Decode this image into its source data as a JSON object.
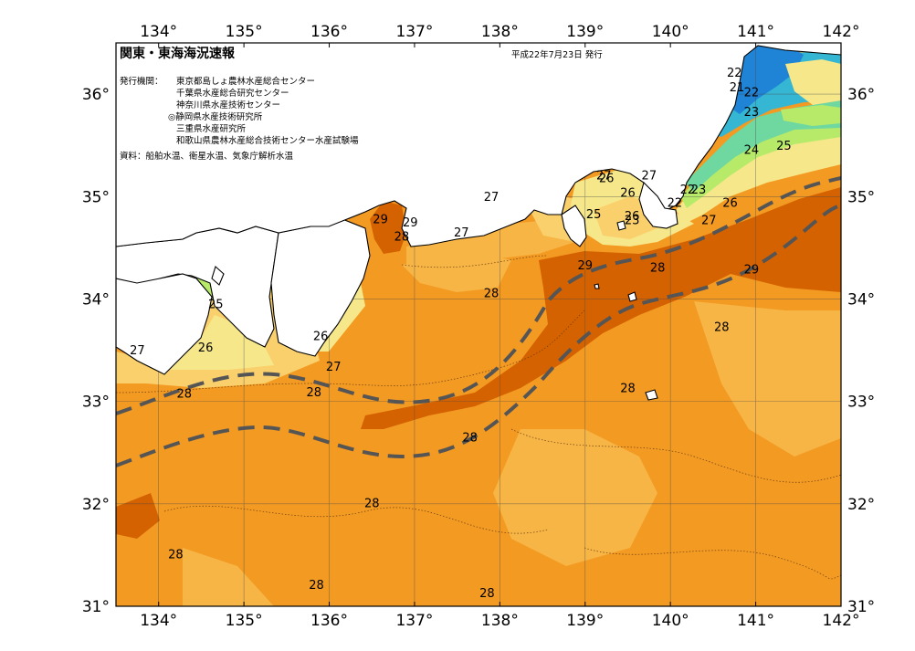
{
  "header": {
    "title": "関東・東海海況速報",
    "date_issued": "平成22年7月23日 発行",
    "issuers_label": "発行機関：",
    "issuers": [
      "東京都島しょ農林水産総合センター",
      "千葉県水産総合研究センター",
      "神奈川県水産技術センター",
      "◎静岡県水産技術研究所",
      "三重県水産研究所",
      "和歌山県農林水産総合技術センター水産試験場"
    ],
    "sources": "資料：船舶水温、衛星水温、気象庁解析水温"
  },
  "axes": {
    "longitude_ticks": [
      "134°",
      "135°",
      "136°",
      "137°",
      "138°",
      "139°",
      "140°",
      "141°",
      "142°"
    ],
    "latitude_ticks": [
      "36°",
      "35°",
      "34°",
      "33°",
      "32°",
      "31°"
    ],
    "lon_range": [
      133.5,
      142
    ],
    "lat_range": [
      31,
      36.5
    ]
  },
  "colors": {
    "warm_29": "#d46200",
    "sst_28": "#f39a22",
    "sst_27": "#f7b545",
    "sst_26": "#fad06c",
    "sst_25": "#f6e88a",
    "sst_24": "#b8ea6a",
    "sst_23": "#6fd8a0",
    "sst_22": "#35b7d4",
    "sst_21": "#1f83d6",
    "land": "#ffffff",
    "kuroshio_axis": "#555555"
  },
  "isotherm_labels": [
    {
      "text": "22",
      "lon": 140.75,
      "lat": 36.2
    },
    {
      "text": "21",
      "lon": 140.78,
      "lat": 36.06
    },
    {
      "text": "22",
      "lon": 140.95,
      "lat": 36.01
    },
    {
      "text": "23",
      "lon": 140.95,
      "lat": 35.82
    },
    {
      "text": "24",
      "lon": 140.95,
      "lat": 35.45
    },
    {
      "text": "25",
      "lon": 141.33,
      "lat": 35.49
    },
    {
      "text": "26",
      "lon": 139.25,
      "lat": 35.17
    },
    {
      "text": "27",
      "lon": 139.22,
      "lat": 35.2
    },
    {
      "text": "27",
      "lon": 139.75,
      "lat": 35.2
    },
    {
      "text": "26",
      "lon": 139.5,
      "lat": 35.03
    },
    {
      "text": "22",
      "lon": 140.2,
      "lat": 35.06
    },
    {
      "text": "23",
      "lon": 140.33,
      "lat": 35.06
    },
    {
      "text": "22",
      "lon": 140.05,
      "lat": 34.93
    },
    {
      "text": "26",
      "lon": 140.7,
      "lat": 34.93
    },
    {
      "text": "27",
      "lon": 137.9,
      "lat": 34.99
    },
    {
      "text": "25",
      "lon": 139.1,
      "lat": 34.82
    },
    {
      "text": "26",
      "lon": 139.55,
      "lat": 34.8
    },
    {
      "text": "23",
      "lon": 139.55,
      "lat": 34.76
    },
    {
      "text": "27",
      "lon": 140.45,
      "lat": 34.76
    },
    {
      "text": "29",
      "lon": 136.6,
      "lat": 34.77
    },
    {
      "text": "29",
      "lon": 136.95,
      "lat": 34.74
    },
    {
      "text": "28",
      "lon": 136.85,
      "lat": 34.6
    },
    {
      "text": "27",
      "lon": 137.55,
      "lat": 34.64
    },
    {
      "text": "29",
      "lon": 139.0,
      "lat": 34.32
    },
    {
      "text": "28",
      "lon": 139.85,
      "lat": 34.3
    },
    {
      "text": "29",
      "lon": 140.95,
      "lat": 34.28
    },
    {
      "text": "28",
      "lon": 137.9,
      "lat": 34.05
    },
    {
      "text": "25",
      "lon": 134.67,
      "lat": 33.94
    },
    {
      "text": "28",
      "lon": 140.6,
      "lat": 33.72
    },
    {
      "text": "26",
      "lon": 135.9,
      "lat": 33.63
    },
    {
      "text": "26",
      "lon": 134.55,
      "lat": 33.52
    },
    {
      "text": "27",
      "lon": 133.75,
      "lat": 33.49
    },
    {
      "text": "27",
      "lon": 136.05,
      "lat": 33.33
    },
    {
      "text": "28",
      "lon": 134.3,
      "lat": 33.07
    },
    {
      "text": "28",
      "lon": 135.82,
      "lat": 33.08
    },
    {
      "text": "28",
      "lon": 139.5,
      "lat": 33.12
    },
    {
      "text": "28",
      "lon": 137.65,
      "lat": 32.64
    },
    {
      "text": "28",
      "lon": 136.5,
      "lat": 32.0
    },
    {
      "text": "28",
      "lon": 134.2,
      "lat": 31.5
    },
    {
      "text": "28",
      "lon": 135.85,
      "lat": 31.2
    },
    {
      "text": "28",
      "lon": 137.85,
      "lat": 31.12
    }
  ]
}
